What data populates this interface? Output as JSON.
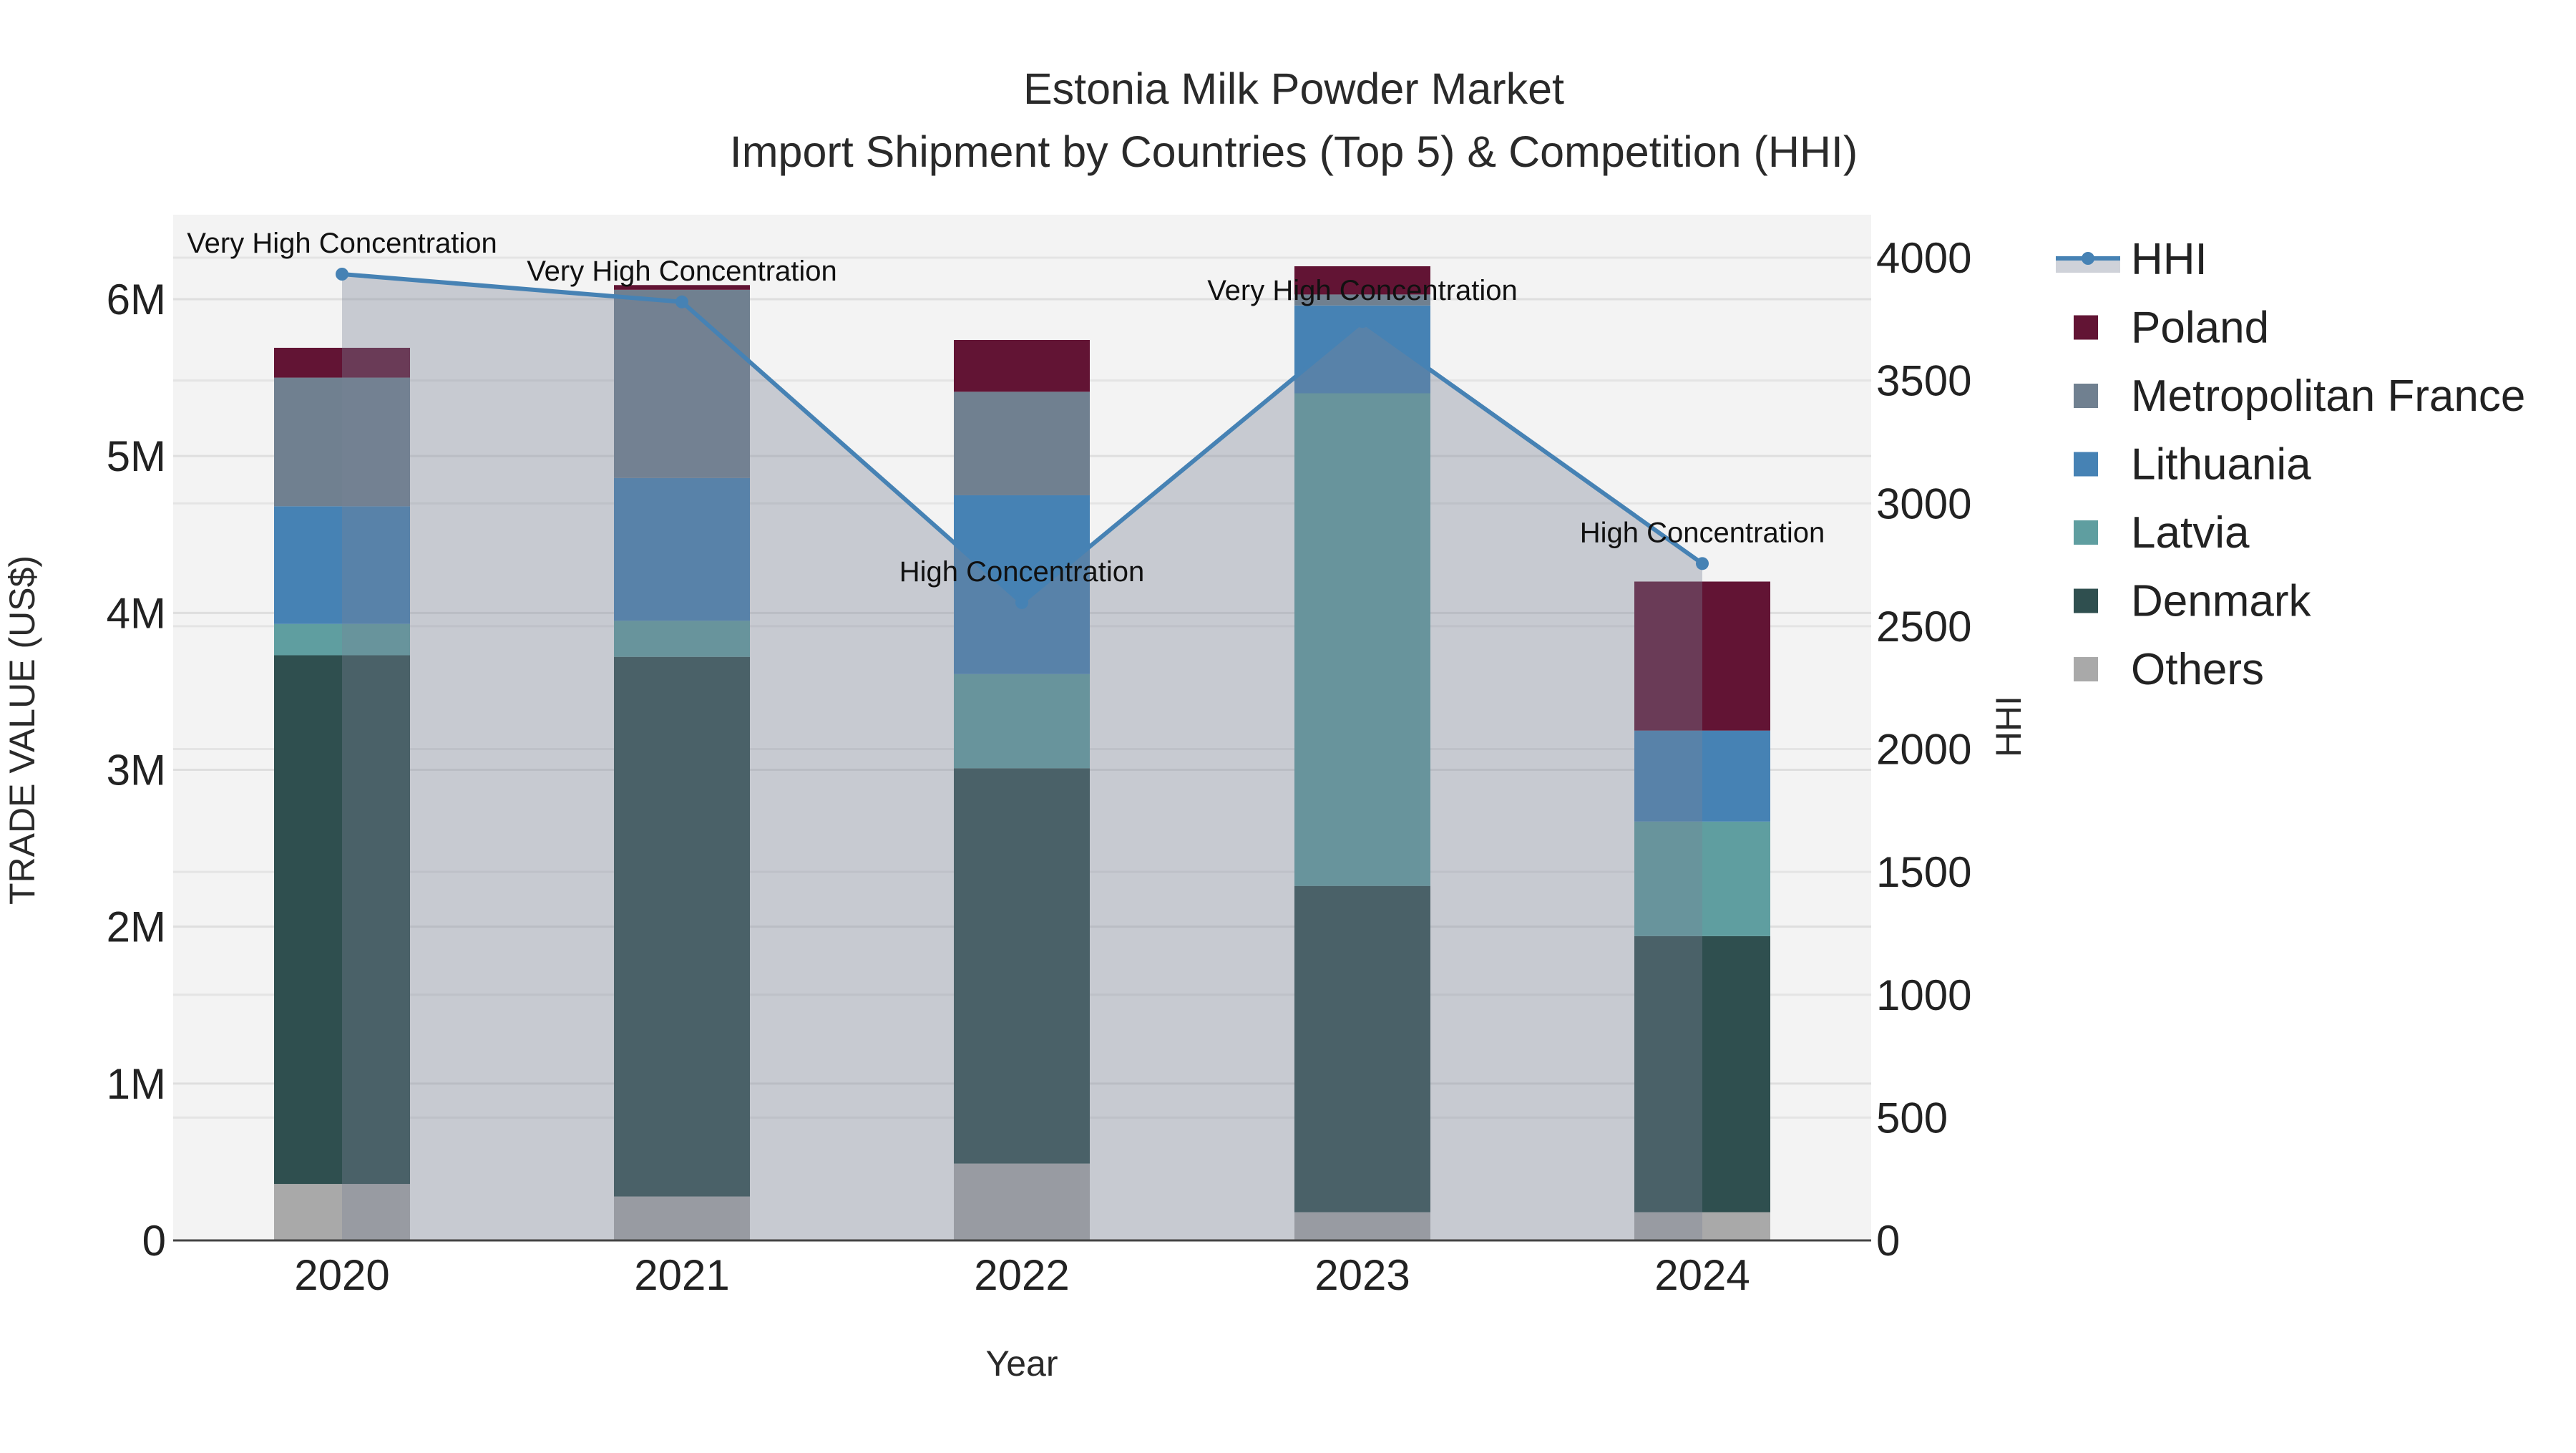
{
  "chart_data": {
    "type": "bar",
    "title": "Estonia Milk Powder Market",
    "subtitle": "Import Shipment by Countries (Top 5) & Competition (HHI)",
    "xlabel": "Year",
    "ylabel": "TRADE VALUE (US$)",
    "y2label": "HHI",
    "categories": [
      "2020",
      "2021",
      "2022",
      "2023",
      "2024"
    ],
    "ylim": [
      0,
      6500000
    ],
    "y_ticks": [
      0,
      1000000,
      2000000,
      3000000,
      4000000,
      5000000,
      6000000
    ],
    "y_tick_labels": [
      "0",
      "1M",
      "2M",
      "3M",
      "4M",
      "5M",
      "6M"
    ],
    "y2lim": [
      0,
      4150
    ],
    "y2_ticks": [
      0,
      500,
      1000,
      1500,
      2000,
      2500,
      3000,
      3500,
      4000
    ],
    "y2_tick_labels": [
      "0",
      "500",
      "1000",
      "1500",
      "2000",
      "2500",
      "3000",
      "3500",
      "4000"
    ],
    "stacked": true,
    "series": [
      {
        "name": "Others",
        "color": "#a9a9a9",
        "values": [
          360000,
          280000,
          490000,
          180000,
          180000
        ]
      },
      {
        "name": "Denmark",
        "color": "#2f4f4f",
        "values": [
          3370000,
          3440000,
          2520000,
          2080000,
          1760000
        ]
      },
      {
        "name": "Latvia",
        "color": "#5f9ea0",
        "values": [
          200000,
          230000,
          600000,
          3140000,
          730000
        ]
      },
      {
        "name": "Lithuania",
        "color": "#4682b4",
        "values": [
          750000,
          910000,
          1140000,
          560000,
          580000
        ]
      },
      {
        "name": "Metropolitan France",
        "color": "#708090",
        "values": [
          820000,
          1200000,
          660000,
          70000,
          0
        ]
      },
      {
        "name": "Poland",
        "color": "#621434",
        "values": [
          190000,
          30000,
          330000,
          180000,
          950000
        ]
      }
    ],
    "hhi": {
      "name": "HHI",
      "color": "#4682b4",
      "values": [
        3933,
        3820,
        2596,
        3740,
        2755
      ],
      "annotations": [
        "Very High Concentration",
        "Very High Concentration",
        "High Concentration",
        "Very High Concentration",
        "High Concentration"
      ]
    },
    "legend": {
      "placement": "right",
      "entries": [
        "HHI",
        "Poland",
        "Metropolitan France",
        "Lithuania",
        "Latvia",
        "Denmark",
        "Others"
      ]
    },
    "grid": true
  }
}
